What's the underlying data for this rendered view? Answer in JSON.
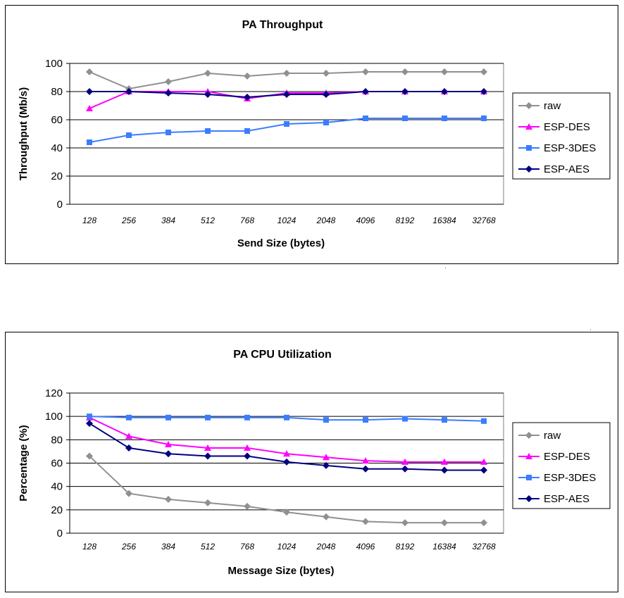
{
  "chart_data": [
    {
      "type": "line",
      "title": "PA Throughput",
      "xlabel": "Send Size (bytes)",
      "ylabel": "Throughput (Mb/s)",
      "categories": [
        "128",
        "256",
        "384",
        "512",
        "768",
        "1024",
        "2048",
        "4096",
        "8192",
        "16384",
        "32768"
      ],
      "ylim": [
        0,
        100
      ],
      "yticks": [
        "0",
        "20",
        "40",
        "60",
        "80",
        "100"
      ],
      "grid": true,
      "legend_position": "right",
      "series": [
        {
          "name": "raw",
          "color": "#909090",
          "marker": "diamond",
          "values": [
            94,
            82,
            87,
            93,
            91,
            93,
            93,
            94,
            94,
            94,
            94
          ]
        },
        {
          "name": "ESP-DES",
          "color": "#ff00ff",
          "marker": "triangle",
          "values": [
            68,
            80,
            80,
            80,
            75,
            79,
            79,
            80,
            80,
            80,
            80
          ]
        },
        {
          "name": "ESP-3DES",
          "color": "#3b7dff",
          "marker": "square",
          "values": [
            44,
            49,
            51,
            52,
            52,
            57,
            58,
            61,
            61,
            61,
            61
          ]
        },
        {
          "name": "ESP-AES",
          "color": "#00007f",
          "marker": "diamond",
          "values": [
            80,
            80,
            79,
            78,
            76,
            78,
            78,
            80,
            80,
            80,
            80
          ]
        }
      ]
    },
    {
      "type": "line",
      "title": "PA CPU Utilization",
      "xlabel": "Message Size (bytes)",
      "ylabel": "Percentage (%)",
      "categories": [
        "128",
        "256",
        "384",
        "512",
        "768",
        "1024",
        "2048",
        "4096",
        "8192",
        "16384",
        "32768"
      ],
      "ylim": [
        0,
        120
      ],
      "yticks": [
        "0",
        "20",
        "40",
        "60",
        "80",
        "100",
        "120"
      ],
      "grid": true,
      "legend_position": "right",
      "series": [
        {
          "name": "raw",
          "color": "#909090",
          "marker": "diamond",
          "values": [
            66,
            34,
            29,
            26,
            23,
            18,
            14,
            10,
            9,
            9,
            9
          ]
        },
        {
          "name": "ESP-DES",
          "color": "#ff00ff",
          "marker": "triangle",
          "values": [
            99,
            83,
            76,
            73,
            73,
            68,
            65,
            62,
            61,
            61,
            61
          ]
        },
        {
          "name": "ESP-3DES",
          "color": "#3b7dff",
          "marker": "square",
          "values": [
            100,
            99,
            99,
            99,
            99,
            99,
            97,
            97,
            98,
            97,
            96
          ]
        },
        {
          "name": "ESP-AES",
          "color": "#00007f",
          "marker": "diamond",
          "values": [
            94,
            73,
            68,
            66,
            66,
            61,
            58,
            55,
            55,
            54,
            54
          ]
        }
      ]
    }
  ]
}
